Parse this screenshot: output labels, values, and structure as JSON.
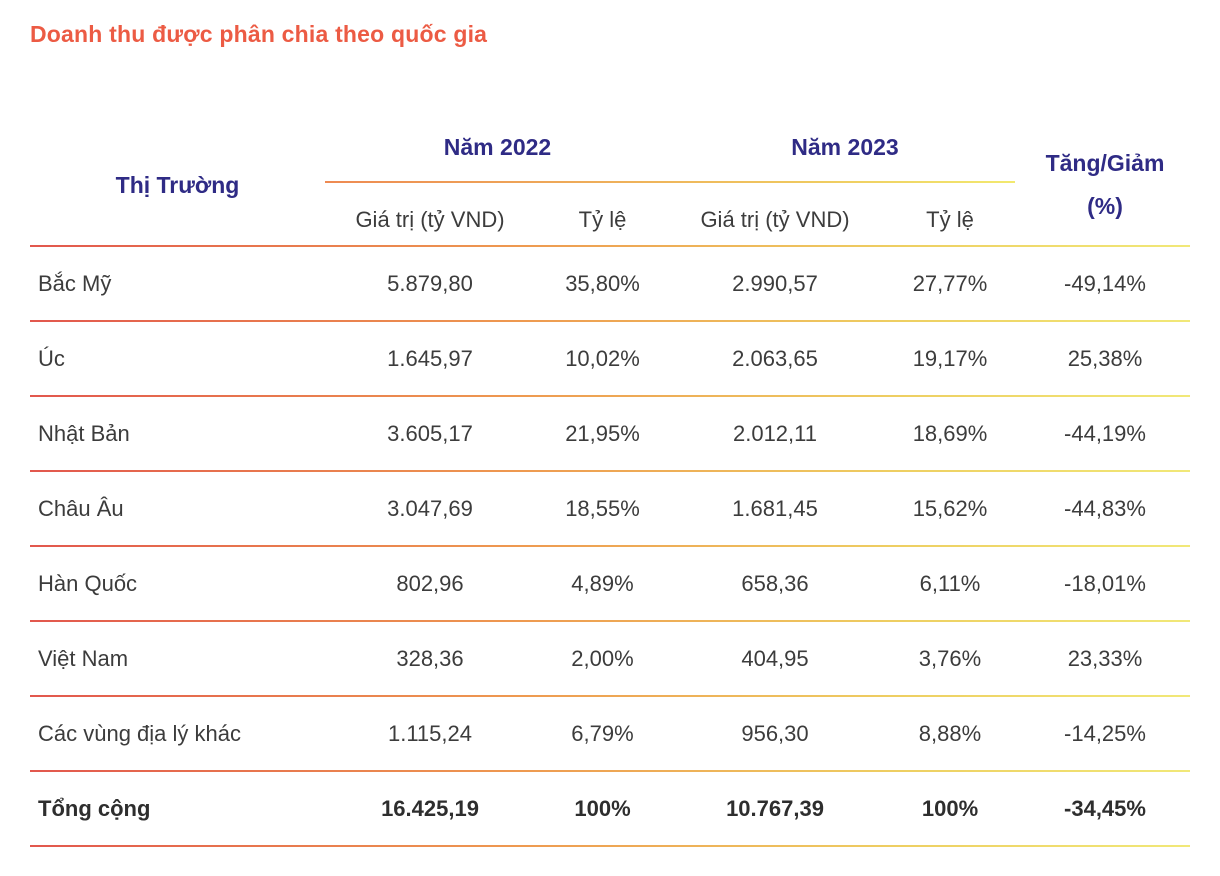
{
  "title": "Doanh thu được phân chia theo quốc gia",
  "colors": {
    "title_accent": "#ec5b44",
    "header_navy": "#2f2b85",
    "body_text": "#3c3c3c",
    "separator_gradient_start": "#e2574d",
    "separator_gradient_mid": "#ee9950",
    "separator_gradient_end": "#f1e878"
  },
  "table": {
    "market_header": "Thị Trường",
    "year_2022_header": "Năm 2022",
    "year_2023_header": "Năm 2023",
    "change_header_line1": "Tăng/Giảm",
    "change_header_line2": "(%)",
    "value_subheader_2022": "Giá trị (tỷ VND)",
    "ratio_subheader_2022": "Tỷ lệ",
    "value_subheader_2023": "Giá trị (tỷ VND)",
    "ratio_subheader_2023": "Tỷ lệ",
    "rows": [
      {
        "market": "Bắc Mỹ",
        "value_2022": "5.879,80",
        "ratio_2022": "35,80%",
        "value_2023": "2.990,57",
        "ratio_2023": "27,77%",
        "change": "-49,14%"
      },
      {
        "market": "Úc",
        "value_2022": "1.645,97",
        "ratio_2022": "10,02%",
        "value_2023": "2.063,65",
        "ratio_2023": "19,17%",
        "change": "25,38%"
      },
      {
        "market": "Nhật Bản",
        "value_2022": "3.605,17",
        "ratio_2022": "21,95%",
        "value_2023": "2.012,11",
        "ratio_2023": "18,69%",
        "change": "-44,19%"
      },
      {
        "market": "Châu Âu",
        "value_2022": "3.047,69",
        "ratio_2022": "18,55%",
        "value_2023": "1.681,45",
        "ratio_2023": "15,62%",
        "change": "-44,83%"
      },
      {
        "market": "Hàn Quốc",
        "value_2022": "802,96",
        "ratio_2022": "4,89%",
        "value_2023": "658,36",
        "ratio_2023": "6,11%",
        "change": "-18,01%"
      },
      {
        "market": "Việt Nam",
        "value_2022": "328,36",
        "ratio_2022": "2,00%",
        "value_2023": "404,95",
        "ratio_2023": "3,76%",
        "change": "23,33%"
      },
      {
        "market": "Các vùng địa lý khác",
        "value_2022": "1.115,24",
        "ratio_2022": "6,79%",
        "value_2023": "956,30",
        "ratio_2023": "8,88%",
        "change": "-14,25%"
      }
    ],
    "total_row": {
      "market": "Tổng cộng",
      "value_2022": "16.425,19",
      "ratio_2022": "100%",
      "value_2023": "10.767,39",
      "ratio_2023": "100%",
      "change": "-34,45%"
    }
  }
}
